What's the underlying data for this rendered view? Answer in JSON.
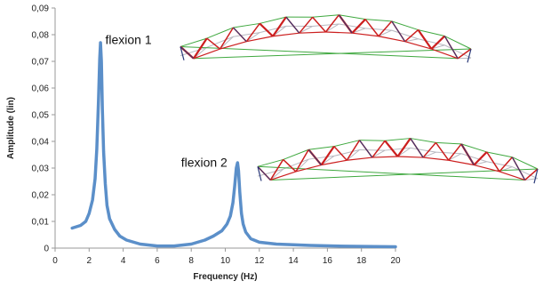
{
  "chart_data": {
    "type": "line",
    "xlabel": "Frequency (Hz)",
    "ylabel": "Amplitude (lin)",
    "xlim": [
      0,
      20
    ],
    "ylim": [
      0,
      0.09
    ],
    "xticks": [
      "0",
      "2",
      "4",
      "6",
      "8",
      "10",
      "12",
      "14",
      "16",
      "18",
      "20"
    ],
    "yticks": [
      "0",
      "0,01",
      "0,02",
      "0,03",
      "0,04",
      "0,05",
      "0,06",
      "0,07",
      "0,08",
      "0,09"
    ],
    "grid": false,
    "series": [
      {
        "color": "#5b8fc9",
        "x": [
          1.0,
          1.5,
          1.8,
          2.0,
          2.2,
          2.35,
          2.45,
          2.55,
          2.62,
          2.67,
          2.72,
          2.78,
          2.85,
          2.95,
          3.05,
          3.2,
          3.5,
          3.8,
          4.2,
          5.0,
          6.0,
          7.0,
          8.0,
          8.8,
          9.3,
          9.8,
          10.1,
          10.3,
          10.45,
          10.55,
          10.65,
          10.72,
          10.78,
          10.85,
          10.95,
          11.05,
          11.2,
          11.5,
          12.0,
          13.0,
          15.0,
          17.0,
          20.0
        ],
        "y": [
          0.0075,
          0.0085,
          0.01,
          0.013,
          0.018,
          0.026,
          0.037,
          0.055,
          0.071,
          0.077,
          0.07,
          0.052,
          0.036,
          0.024,
          0.016,
          0.011,
          0.007,
          0.0045,
          0.003,
          0.0015,
          0.0008,
          0.0008,
          0.0015,
          0.003,
          0.0045,
          0.0065,
          0.009,
          0.012,
          0.017,
          0.023,
          0.03,
          0.032,
          0.029,
          0.021,
          0.013,
          0.009,
          0.006,
          0.0035,
          0.0022,
          0.0015,
          0.001,
          0.0007,
          0.0005
        ]
      }
    ],
    "annotations": [
      {
        "text": "flexion 1",
        "x": 2.95,
        "y": 0.0765
      },
      {
        "text": "flexion 2",
        "x": 7.4,
        "y": 0.0305
      }
    ]
  },
  "colors": {
    "truss_red": "#cc1f1f",
    "truss_green": "#3fa83f",
    "truss_grey": "#b8b8c0",
    "truss_navy": "#2b3a7a"
  },
  "illustrations": [
    "truss-mode-shape-1",
    "truss-mode-shape-2"
  ]
}
